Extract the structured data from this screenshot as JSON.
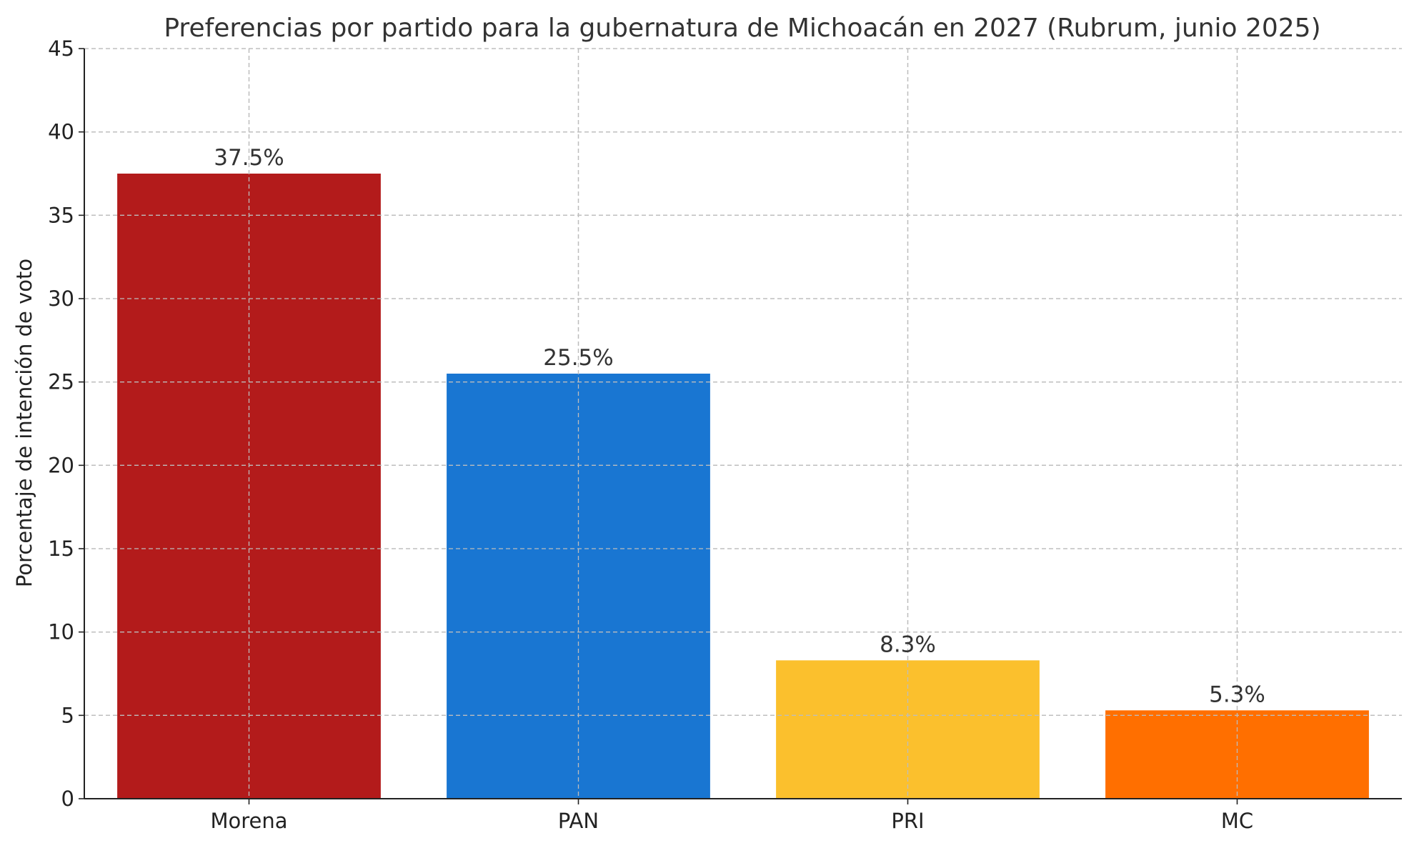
{
  "chart_data": {
    "type": "bar",
    "title": "Preferencias por partido para la gubernatura de Michoacán en 2027 (Rubrum, junio 2025)",
    "xlabel": "",
    "ylabel": "Porcentaje de intención de voto",
    "categories": [
      "Morena",
      "PAN",
      "PRI",
      "MC"
    ],
    "values": [
      37.5,
      25.5,
      8.3,
      5.3
    ],
    "data_labels": [
      "37.5%",
      "25.5%",
      "8.3%",
      "5.3%"
    ],
    "colors": [
      "#b31b1b",
      "#1976d2",
      "#fbc02d",
      "#ff6f00"
    ],
    "ylim": [
      0,
      45
    ],
    "yticks": [
      0,
      5,
      10,
      15,
      20,
      25,
      30,
      35,
      40,
      45
    ],
    "grid": true,
    "legend": "none"
  }
}
